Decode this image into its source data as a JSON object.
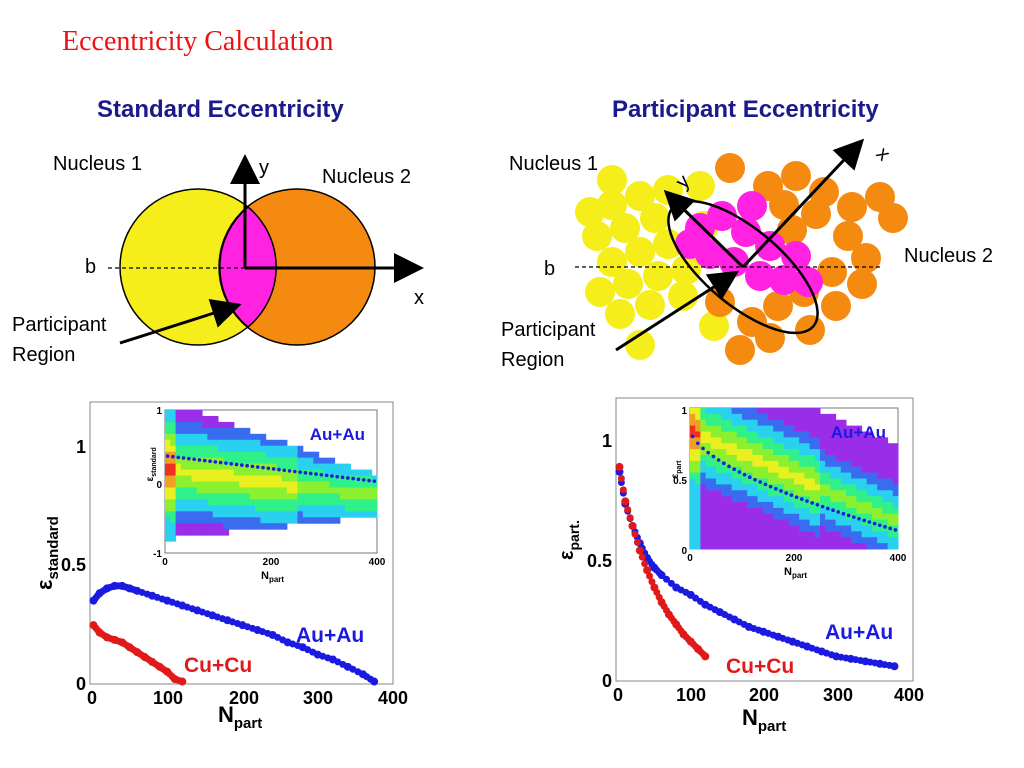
{
  "title": "Eccentricity Calculation",
  "left_diagram": {
    "heading": "Standard Eccentricity",
    "nucleus1": "Nucleus 1",
    "nucleus2": "Nucleus 2",
    "b_label": "b",
    "x_label": "x",
    "y_label": "y",
    "participant_line1": "Participant",
    "participant_line2": "Region"
  },
  "right_diagram": {
    "heading": "Participant Eccentricity",
    "nucleus1": "Nucleus 1",
    "nucleus2": "Nucleus 2",
    "b_label": "b",
    "x_label": "x",
    "y_label": "y",
    "participant_line1": "Participant",
    "participant_line2": "Region"
  },
  "colors": {
    "title": "#ee1111",
    "heading": "#1a1a8c",
    "nucleus1": "#f5ee1a",
    "nucleus2": "#f58a10",
    "participant": "#ff22e0",
    "au": "#1a1ae0",
    "cu": "#e01a1a"
  },
  "chart_data": [
    {
      "type": "scatter",
      "xlabel": "N",
      "xlabel_sub": "part",
      "ylabel": "ε",
      "ylabel_sub": "standard",
      "xlim": [
        0,
        400
      ],
      "ylim": [
        0,
        1.15
      ],
      "x_ticks": [
        "0",
        "100",
        "200",
        "300",
        "400"
      ],
      "y_ticks": [
        "0",
        "0.5",
        "1"
      ],
      "series": [
        {
          "name": "Au+Au",
          "color": "#1a1ae0",
          "x": [
            2,
            10,
            20,
            30,
            40,
            50,
            60,
            80,
            100,
            120,
            140,
            160,
            180,
            200,
            220,
            240,
            260,
            280,
            300,
            320,
            340,
            360,
            375
          ],
          "y": [
            0.34,
            0.37,
            0.39,
            0.4,
            0.4,
            0.39,
            0.38,
            0.36,
            0.34,
            0.32,
            0.3,
            0.28,
            0.26,
            0.24,
            0.22,
            0.2,
            0.17,
            0.15,
            0.12,
            0.1,
            0.07,
            0.04,
            0.01
          ]
        },
        {
          "name": "Cu+Cu",
          "color": "#e01a1a",
          "x": [
            2,
            10,
            20,
            30,
            40,
            50,
            60,
            70,
            80,
            90,
            100,
            110,
            120
          ],
          "y": [
            0.24,
            0.21,
            0.19,
            0.18,
            0.17,
            0.15,
            0.13,
            0.11,
            0.09,
            0.07,
            0.05,
            0.02,
            0.01
          ]
        }
      ],
      "inset": {
        "type": "heatmap",
        "xlabel": "N",
        "xlabel_sub": "part",
        "ylabel": "ε",
        "ylabel_sub": "standard",
        "x_ticks": [
          "0",
          "200",
          "400"
        ],
        "y_ticks": [
          "1",
          "0",
          "-1"
        ],
        "label": "Au+Au"
      }
    },
    {
      "type": "scatter",
      "xlabel": "N",
      "xlabel_sub": "part",
      "ylabel": "ε",
      "ylabel_sub": "part.",
      "xlim": [
        0,
        400
      ],
      "ylim": [
        0,
        1.15
      ],
      "x_ticks": [
        "0",
        "100",
        "200",
        "300",
        "400"
      ],
      "y_ticks": [
        "0",
        "0.5",
        "1"
      ],
      "series": [
        {
          "name": "Au+Au",
          "color": "#1a1ae0",
          "x": [
            2,
            10,
            20,
            30,
            40,
            50,
            60,
            80,
            100,
            120,
            140,
            160,
            180,
            200,
            220,
            240,
            260,
            280,
            300,
            320,
            340,
            360,
            380
          ],
          "y": [
            0.85,
            0.72,
            0.63,
            0.56,
            0.5,
            0.46,
            0.43,
            0.38,
            0.35,
            0.31,
            0.28,
            0.25,
            0.22,
            0.2,
            0.18,
            0.16,
            0.14,
            0.12,
            0.1,
            0.09,
            0.08,
            0.07,
            0.06
          ]
        },
        {
          "name": "Cu+Cu",
          "color": "#e01a1a",
          "x": [
            2,
            10,
            20,
            30,
            40,
            50,
            60,
            70,
            80,
            90,
            100,
            110,
            120
          ],
          "y": [
            0.87,
            0.73,
            0.63,
            0.53,
            0.45,
            0.38,
            0.32,
            0.27,
            0.23,
            0.19,
            0.16,
            0.13,
            0.1
          ]
        }
      ],
      "inset": {
        "type": "heatmap",
        "xlabel": "N",
        "xlabel_sub": "part",
        "ylabel": "ε",
        "ylabel_sub": "part",
        "x_ticks": [
          "0",
          "200",
          "400"
        ],
        "y_ticks": [
          "1",
          "0.5",
          "0"
        ],
        "label": "Au+Au"
      }
    }
  ]
}
